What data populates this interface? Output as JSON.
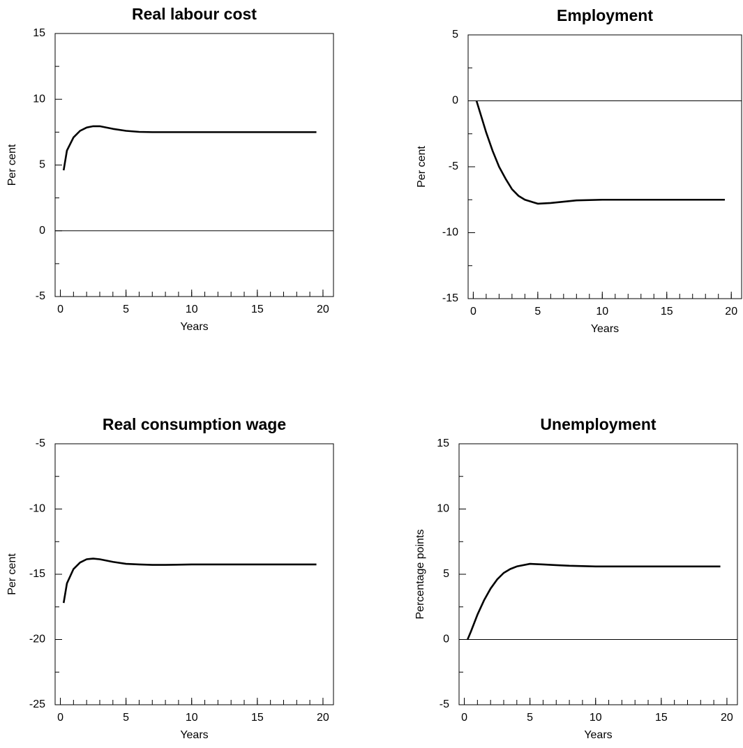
{
  "chart_data": [
    {
      "type": "line",
      "title": "Real labour cost",
      "xlabel": "Years",
      "ylabel": "Per cent",
      "x": [
        0.25,
        0.5,
        1,
        1.5,
        2,
        2.5,
        3,
        3.5,
        4,
        5,
        6,
        7,
        8,
        10,
        12,
        14,
        16,
        18,
        19.5
      ],
      "series": [
        {
          "color": "#000000",
          "values": [
            4.6,
            6.1,
            7.1,
            7.6,
            7.85,
            7.95,
            7.95,
            7.85,
            7.75,
            7.6,
            7.52,
            7.5,
            7.5,
            7.5,
            7.5,
            7.5,
            7.5,
            7.5,
            7.5
          ]
        }
      ],
      "xlim": [
        -0.4,
        20.8
      ],
      "ylim": [
        -5,
        15
      ],
      "xticks": [
        0,
        5,
        10,
        15,
        20
      ],
      "yticks": [
        -5,
        0,
        5,
        10,
        15
      ],
      "hline": 0
    },
    {
      "type": "line",
      "title": "Employment",
      "xlabel": "Years",
      "ylabel": "Per cent",
      "x": [
        0.25,
        0.5,
        1,
        1.5,
        2,
        2.5,
        3,
        3.5,
        4,
        5,
        6,
        7,
        8,
        10,
        12,
        14,
        16,
        18,
        19.5
      ],
      "series": [
        {
          "color": "#000000",
          "values": [
            0,
            -0.8,
            -2.4,
            -3.8,
            -5.0,
            -5.9,
            -6.7,
            -7.2,
            -7.5,
            -7.8,
            -7.75,
            -7.65,
            -7.55,
            -7.5,
            -7.5,
            -7.5,
            -7.5,
            -7.5,
            -7.5
          ]
        }
      ],
      "xlim": [
        -0.4,
        20.8
      ],
      "ylim": [
        -15,
        5
      ],
      "xticks": [
        0,
        5,
        10,
        15,
        20
      ],
      "yticks": [
        -15,
        -10,
        -5,
        0,
        5
      ],
      "hline": 0
    },
    {
      "type": "line",
      "title": "Real consumption wage",
      "xlabel": "Years",
      "ylabel": "Per cent",
      "x": [
        0.25,
        0.5,
        1,
        1.5,
        2,
        2.5,
        3,
        3.5,
        4,
        5,
        6,
        7,
        8,
        10,
        12,
        14,
        16,
        18,
        19.5
      ],
      "series": [
        {
          "color": "#000000",
          "values": [
            -17.2,
            -15.7,
            -14.6,
            -14.1,
            -13.85,
            -13.8,
            -13.85,
            -13.95,
            -14.05,
            -14.2,
            -14.25,
            -14.28,
            -14.28,
            -14.25,
            -14.25,
            -14.25,
            -14.25,
            -14.25,
            -14.25
          ]
        }
      ],
      "xlim": [
        -0.4,
        20.8
      ],
      "ylim": [
        -25,
        -5
      ],
      "xticks": [
        0,
        5,
        10,
        15,
        20
      ],
      "yticks": [
        -25,
        -20,
        -15,
        -10,
        -5
      ]
    },
    {
      "type": "line",
      "title": "Unemployment",
      "xlabel": "Years",
      "ylabel": "Percentage points",
      "x": [
        0.25,
        0.5,
        1,
        1.5,
        2,
        2.5,
        3,
        3.5,
        4,
        5,
        6,
        7,
        8,
        10,
        12,
        14,
        16,
        18,
        19.5
      ],
      "series": [
        {
          "color": "#000000",
          "values": [
            0,
            0.6,
            1.9,
            3.0,
            3.9,
            4.6,
            5.1,
            5.4,
            5.6,
            5.8,
            5.75,
            5.7,
            5.65,
            5.6,
            5.6,
            5.6,
            5.6,
            5.6,
            5.6
          ]
        }
      ],
      "xlim": [
        -0.4,
        20.8
      ],
      "ylim": [
        -5,
        15
      ],
      "xticks": [
        0,
        5,
        10,
        15,
        20
      ],
      "yticks": [
        -5,
        0,
        5,
        10,
        15
      ],
      "hline": 0
    }
  ]
}
